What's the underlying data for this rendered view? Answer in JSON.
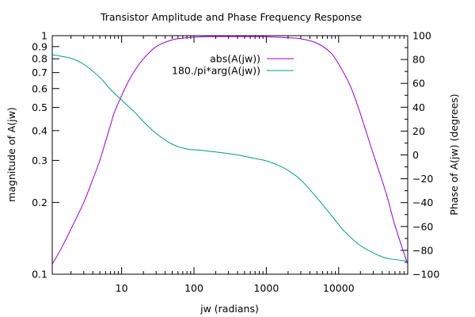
{
  "chart_data": {
    "type": "line",
    "title": "Transistor Amplitude and Phase Frequency Response",
    "xlabel": "jw (radians)",
    "ylabel": "magnitude of A(jw)",
    "y2label": "Phase of A(jw) (degrees)",
    "x_scale": "log",
    "y_scale": "log",
    "xlim": [
      1.1,
      90000
    ],
    "ylim": [
      0.1,
      1
    ],
    "y2lim": [
      -100,
      100
    ],
    "x_ticks": [
      {
        "value": 10,
        "label": "10"
      },
      {
        "value": 100,
        "label": "100"
      },
      {
        "value": 1000,
        "label": "1000"
      },
      {
        "value": 10000,
        "label": "10000"
      }
    ],
    "y_ticks": [
      {
        "value": 0.1,
        "label": "0.1"
      },
      {
        "value": 0.2,
        "label": "0.2"
      },
      {
        "value": 0.3,
        "label": "0.3"
      },
      {
        "value": 0.4,
        "label": "0.4"
      },
      {
        "value": 0.5,
        "label": "0.5"
      },
      {
        "value": 0.6,
        "label": "0.6"
      },
      {
        "value": 0.7,
        "label": "0.7"
      },
      {
        "value": 0.8,
        "label": "0.8"
      },
      {
        "value": 0.9,
        "label": "0.9"
      },
      {
        "value": 1,
        "label": "1"
      }
    ],
    "y2_ticks": [
      {
        "value": 100,
        "label": "100"
      },
      {
        "value": 80,
        "label": "80"
      },
      {
        "value": 60,
        "label": "60"
      },
      {
        "value": 40,
        "label": "40"
      },
      {
        "value": 20,
        "label": "20"
      },
      {
        "value": 0,
        "label": "0"
      },
      {
        "value": -20,
        "label": "−20"
      },
      {
        "value": -40,
        "label": "−40"
      },
      {
        "value": -60,
        "label": "−60"
      },
      {
        "value": -80,
        "label": "−80"
      },
      {
        "value": -100,
        "label": "−100"
      }
    ],
    "legend_position": "top-right",
    "grid": false,
    "series": [
      {
        "name": "abs(A(jw))",
        "axis": "y",
        "color": "#9400d3",
        "points": [
          [
            1.1,
            0.11
          ],
          [
            1.5,
            0.13
          ],
          [
            2,
            0.155
          ],
          [
            3,
            0.2
          ],
          [
            4,
            0.25
          ],
          [
            5,
            0.3
          ],
          [
            6,
            0.36
          ],
          [
            7,
            0.42
          ],
          [
            8,
            0.48
          ],
          [
            10,
            0.56
          ],
          [
            12,
            0.63
          ],
          [
            15,
            0.71
          ],
          [
            20,
            0.8
          ],
          [
            30,
            0.9
          ],
          [
            50,
            0.96
          ],
          [
            80,
            0.98
          ],
          [
            150,
            0.99
          ],
          [
            300,
            0.99
          ],
          [
            800,
            0.99
          ],
          [
            2000,
            0.98
          ],
          [
            3000,
            0.97
          ],
          [
            5000,
            0.93
          ],
          [
            8000,
            0.84
          ],
          [
            12000,
            0.69
          ],
          [
            15000,
            0.6
          ],
          [
            20000,
            0.47
          ],
          [
            30000,
            0.32
          ],
          [
            45000,
            0.22
          ],
          [
            60000,
            0.16
          ],
          [
            90000,
            0.11
          ]
        ]
      },
      {
        "name": "180./pi*arg(A(jw))",
        "axis": "y2",
        "color": "#009e73",
        "points": [
          [
            1.1,
            84
          ],
          [
            2,
            81
          ],
          [
            3,
            76
          ],
          [
            5,
            65
          ],
          [
            7,
            55
          ],
          [
            10,
            46
          ],
          [
            15,
            36
          ],
          [
            20,
            28
          ],
          [
            30,
            18
          ],
          [
            50,
            9
          ],
          [
            80,
            5
          ],
          [
            120,
            4
          ],
          [
            200,
            2.5
          ],
          [
            400,
            0
          ],
          [
            700,
            -3
          ],
          [
            1000,
            -5
          ],
          [
            1500,
            -9
          ],
          [
            2000,
            -13
          ],
          [
            3000,
            -21
          ],
          [
            5000,
            -36
          ],
          [
            8000,
            -51
          ],
          [
            12000,
            -64
          ],
          [
            20000,
            -76
          ],
          [
            35000,
            -84
          ],
          [
            50000,
            -87
          ],
          [
            90000,
            -89
          ]
        ]
      }
    ]
  }
}
